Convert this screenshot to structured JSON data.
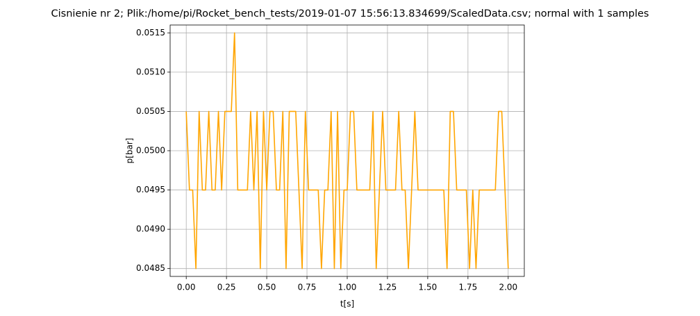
{
  "chart_data": {
    "type": "line",
    "title": "Cisnienie nr 2; Plik:/home/pi/Rocket_bench_tests/2019-01-07 15:56:13.834699/ScaledData.csv; normal with 1 samples",
    "xlabel": "t[s]",
    "ylabel": "p[bar]",
    "color": "#ffa500",
    "grid": true,
    "xlim": [
      -0.1,
      2.1
    ],
    "ylim": [
      0.0484,
      0.0516
    ],
    "xticks": [
      {
        "value": 0,
        "label": "0.00"
      },
      {
        "value": 0.25,
        "label": "0.25"
      },
      {
        "value": 0.5,
        "label": "0.50"
      },
      {
        "value": 0.75,
        "label": "0.75"
      },
      {
        "value": 1,
        "label": "1.00"
      },
      {
        "value": 1.25,
        "label": "1.25"
      },
      {
        "value": 1.5,
        "label": "1.50"
      },
      {
        "value": 1.75,
        "label": "1.75"
      },
      {
        "value": 2,
        "label": "2.00"
      }
    ],
    "yticks": [
      0.0485,
      {
        "value": 0.049,
        "label": "0.0490"
      },
      0.0495,
      {
        "value": 0.05,
        "label": "0.0500"
      },
      0.0505,
      {
        "value": 0.051,
        "label": "0.0510"
      },
      0.0515
    ],
    "x": [
      0,
      0.02,
      0.04,
      0.06,
      0.08,
      0.1,
      0.12,
      0.14,
      0.16,
      0.18,
      0.2,
      0.22,
      0.24,
      0.26,
      0.28,
      0.3,
      0.32,
      0.34,
      0.36,
      0.38,
      0.4,
      0.42,
      0.44,
      0.46,
      0.48,
      0.5,
      0.52,
      0.54,
      0.56,
      0.58,
      0.6,
      0.62,
      0.64,
      0.66,
      0.68,
      0.7,
      0.72,
      0.74,
      0.76,
      0.78,
      0.8,
      0.82,
      0.84,
      0.86,
      0.88,
      0.9,
      0.92,
      0.94,
      0.96,
      0.98,
      1,
      1.02,
      1.04,
      1.06,
      1.08,
      1.1,
      1.12,
      1.14,
      1.16,
      1.18,
      1.2,
      1.22,
      1.24,
      1.26,
      1.28,
      1.3,
      1.32,
      1.34,
      1.36,
      1.38,
      1.4,
      1.42,
      1.44,
      1.46,
      1.48,
      1.5,
      1.52,
      1.54,
      1.56,
      1.58,
      1.6,
      1.62,
      1.64,
      1.66,
      1.68,
      1.7,
      1.72,
      1.74,
      1.76,
      1.78,
      1.8,
      1.82,
      1.84,
      1.86,
      1.88,
      1.9,
      1.92,
      1.94,
      1.96,
      1.98,
      2
    ],
    "values": [
      0.0505,
      0.0495,
      0.0495,
      0.0485,
      0.0505,
      0.0495,
      0.0495,
      0.0505,
      0.0495,
      0.0495,
      0.0505,
      0.0495,
      0.0505,
      0.0505,
      0.0505,
      0.0515,
      0.0495,
      0.0495,
      0.0495,
      0.0495,
      0.0505,
      0.0495,
      0.0505,
      0.0485,
      0.0505,
      0.0495,
      0.0505,
      0.0505,
      0.0495,
      0.0495,
      0.0505,
      0.0485,
      0.0505,
      0.0505,
      0.0505,
      0.0495,
      0.0485,
      0.0505,
      0.0495,
      0.0495,
      0.0495,
      0.0495,
      0.0485,
      0.0495,
      0.0495,
      0.0505,
      0.0485,
      0.0505,
      0.0485,
      0.0495,
      0.0495,
      0.0505,
      0.0505,
      0.0495,
      0.0495,
      0.0495,
      0.0495,
      0.0495,
      0.0505,
      0.0485,
      0.0495,
      0.0505,
      0.0495,
      0.0495,
      0.0495,
      0.0495,
      0.0505,
      0.0495,
      0.0495,
      0.0485,
      0.0495,
      0.0505,
      0.0495,
      0.0495,
      0.0495,
      0.0495,
      0.0495,
      0.0495,
      0.0495,
      0.0495,
      0.0495,
      0.0485,
      0.0505,
      0.0505,
      0.0495,
      0.0495,
      0.0495,
      0.0495,
      0.0485,
      0.0495,
      0.0485,
      0.0495,
      0.0495,
      0.0495,
      0.0495,
      0.0495,
      0.0495,
      0.0505,
      0.0505,
      0.0495,
      0.0485
    ]
  }
}
